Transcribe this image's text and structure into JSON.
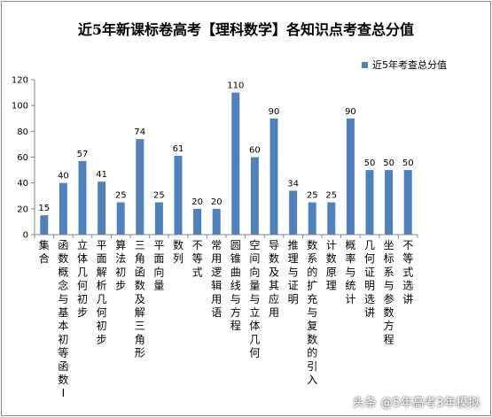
{
  "chart_data": {
    "type": "bar",
    "title": "近5年新课标卷高考【理科数学】各知识点考查总分值",
    "xlabel": "",
    "ylabel": "",
    "ylim": [
      0,
      120
    ],
    "yticks": [
      0,
      20,
      40,
      60,
      80,
      100,
      120
    ],
    "grid": false,
    "legend_position": "top-right",
    "bar_color": "#4f81bd",
    "categories": [
      "集合",
      "函数概念与基本初等函数Ⅰ",
      "立体几何初步",
      "平面解析几何初步",
      "算法初步",
      "三角函数及解三角形",
      "平面向量",
      "数列",
      "不等式",
      "常用逻辑用语",
      "圆锥曲线与方程",
      "空间向量与立体几何",
      "导数及其应用",
      "推理与证明",
      "数系的扩充与复数的引入",
      "计数原理",
      "概率与统计",
      "几何证明选讲",
      "坐标系与参数方程",
      "不等式选讲"
    ],
    "series": [
      {
        "name": "近5年考查总分值",
        "values": [
          15,
          40,
          57,
          41,
          25,
          74,
          25,
          61,
          20,
          20,
          110,
          60,
          90,
          34,
          25,
          25,
          90,
          50,
          50,
          50
        ]
      }
    ]
  },
  "watermark": "头条 @5年高考3年模拟"
}
